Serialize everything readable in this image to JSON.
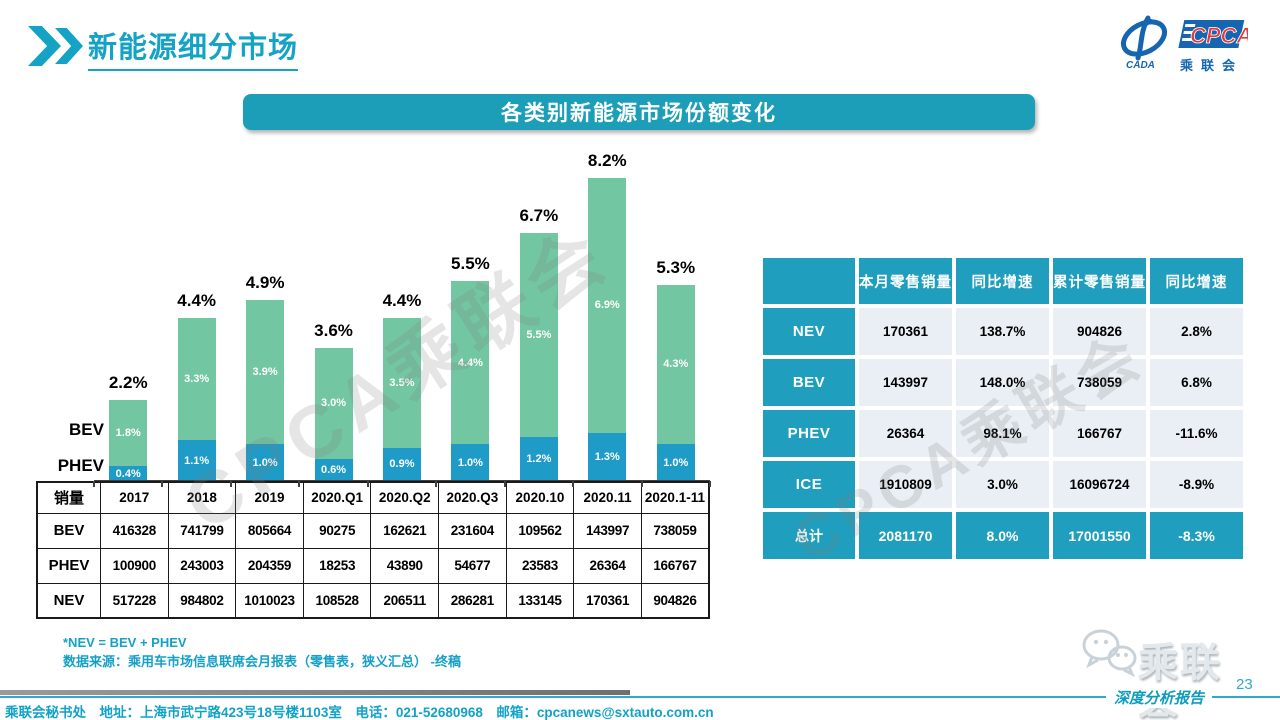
{
  "header": {
    "title": "新能源细分市场"
  },
  "logo": {
    "cpca": "CPCA",
    "cada": "CADA",
    "cn": "乘联会"
  },
  "banner": {
    "title": "各类别新能源市场份额变化"
  },
  "watermark": "CPCA乘联会",
  "chart_data": {
    "type": "bar",
    "stacked": true,
    "title": "各类别新能源市场份额变化",
    "unit": "%",
    "ylim": [
      0,
      9
    ],
    "grid": false,
    "legend_position": "left-of-first-bar",
    "side_labels": [
      "BEV",
      "PHEV"
    ],
    "categories": [
      "2017",
      "2018",
      "2019",
      "2020.Q1",
      "2020.Q2",
      "2020.Q3",
      "2020.10",
      "2020.11",
      "2020.1-11"
    ],
    "series": [
      {
        "name": "PHEV",
        "color": "#1E9CC7",
        "values": [
          0.4,
          1.1,
          1.0,
          0.6,
          0.9,
          1.0,
          1.2,
          1.3,
          1.0
        ]
      },
      {
        "name": "BEV",
        "color": "#72C6A2",
        "values": [
          1.8,
          3.3,
          3.9,
          3.0,
          3.5,
          4.4,
          5.5,
          6.9,
          4.3
        ]
      }
    ],
    "totals": [
      2.2,
      4.4,
      4.9,
      3.6,
      4.4,
      5.5,
      6.7,
      8.2,
      5.3
    ]
  },
  "sales_table": {
    "corner": "销量",
    "columns": [
      "2017",
      "2018",
      "2019",
      "2020.Q1",
      "2020.Q2",
      "2020.Q3",
      "2020.10",
      "2020.11",
      "2020.1-11"
    ],
    "rows": [
      {
        "label": "BEV",
        "values": [
          "416328",
          "741799",
          "805664",
          "90275",
          "162621",
          "231604",
          "109562",
          "143997",
          "738059"
        ]
      },
      {
        "label": "PHEV",
        "values": [
          "100900",
          "243003",
          "204359",
          "18253",
          "43890",
          "54677",
          "23583",
          "26364",
          "166767"
        ]
      },
      {
        "label": "NEV",
        "values": [
          "517228",
          "984802",
          "1010023",
          "108528",
          "206511",
          "286281",
          "133145",
          "170361",
          "904826"
        ]
      }
    ]
  },
  "summary_table": {
    "headers": [
      "",
      "本月零售销量",
      "同比增速",
      "累计零售销量",
      "同比增速"
    ],
    "rows": [
      {
        "label": "NEV",
        "values": [
          "170361",
          "138.7%",
          "904826",
          "2.8%"
        ],
        "total": false
      },
      {
        "label": "BEV",
        "values": [
          "143997",
          "148.0%",
          "738059",
          "6.8%"
        ],
        "total": false
      },
      {
        "label": "PHEV",
        "values": [
          "26364",
          "98.1%",
          "166767",
          "-11.6%"
        ],
        "total": false
      },
      {
        "label": "ICE",
        "values": [
          "1910809",
          "3.0%",
          "16096724",
          "-8.9%"
        ],
        "total": false
      },
      {
        "label": "总计",
        "values": [
          "2081170",
          "8.0%",
          "17001550",
          "-8.3%"
        ],
        "total": true
      }
    ]
  },
  "notes": {
    "line1": "*NEV = BEV + PHEV",
    "line2": "数据来源：乘用车市场信息联席会月报表（零售表，狭义汇总）  -终稿"
  },
  "footer": {
    "contact": "乘联会秘书处　地址：上海市武宁路423号18号楼1103室　电话：021-52680968　邮箱：cpcanews@sxtauto.com.cn",
    "page_number": "23",
    "report_label": "深度分析报告",
    "wechat_label": "乘联会"
  },
  "colors": {
    "teal": "#1C9EB9",
    "bar_green": "#72C6A2",
    "bar_blue": "#1E9CC7",
    "cell_bg": "#E9EFF5"
  }
}
